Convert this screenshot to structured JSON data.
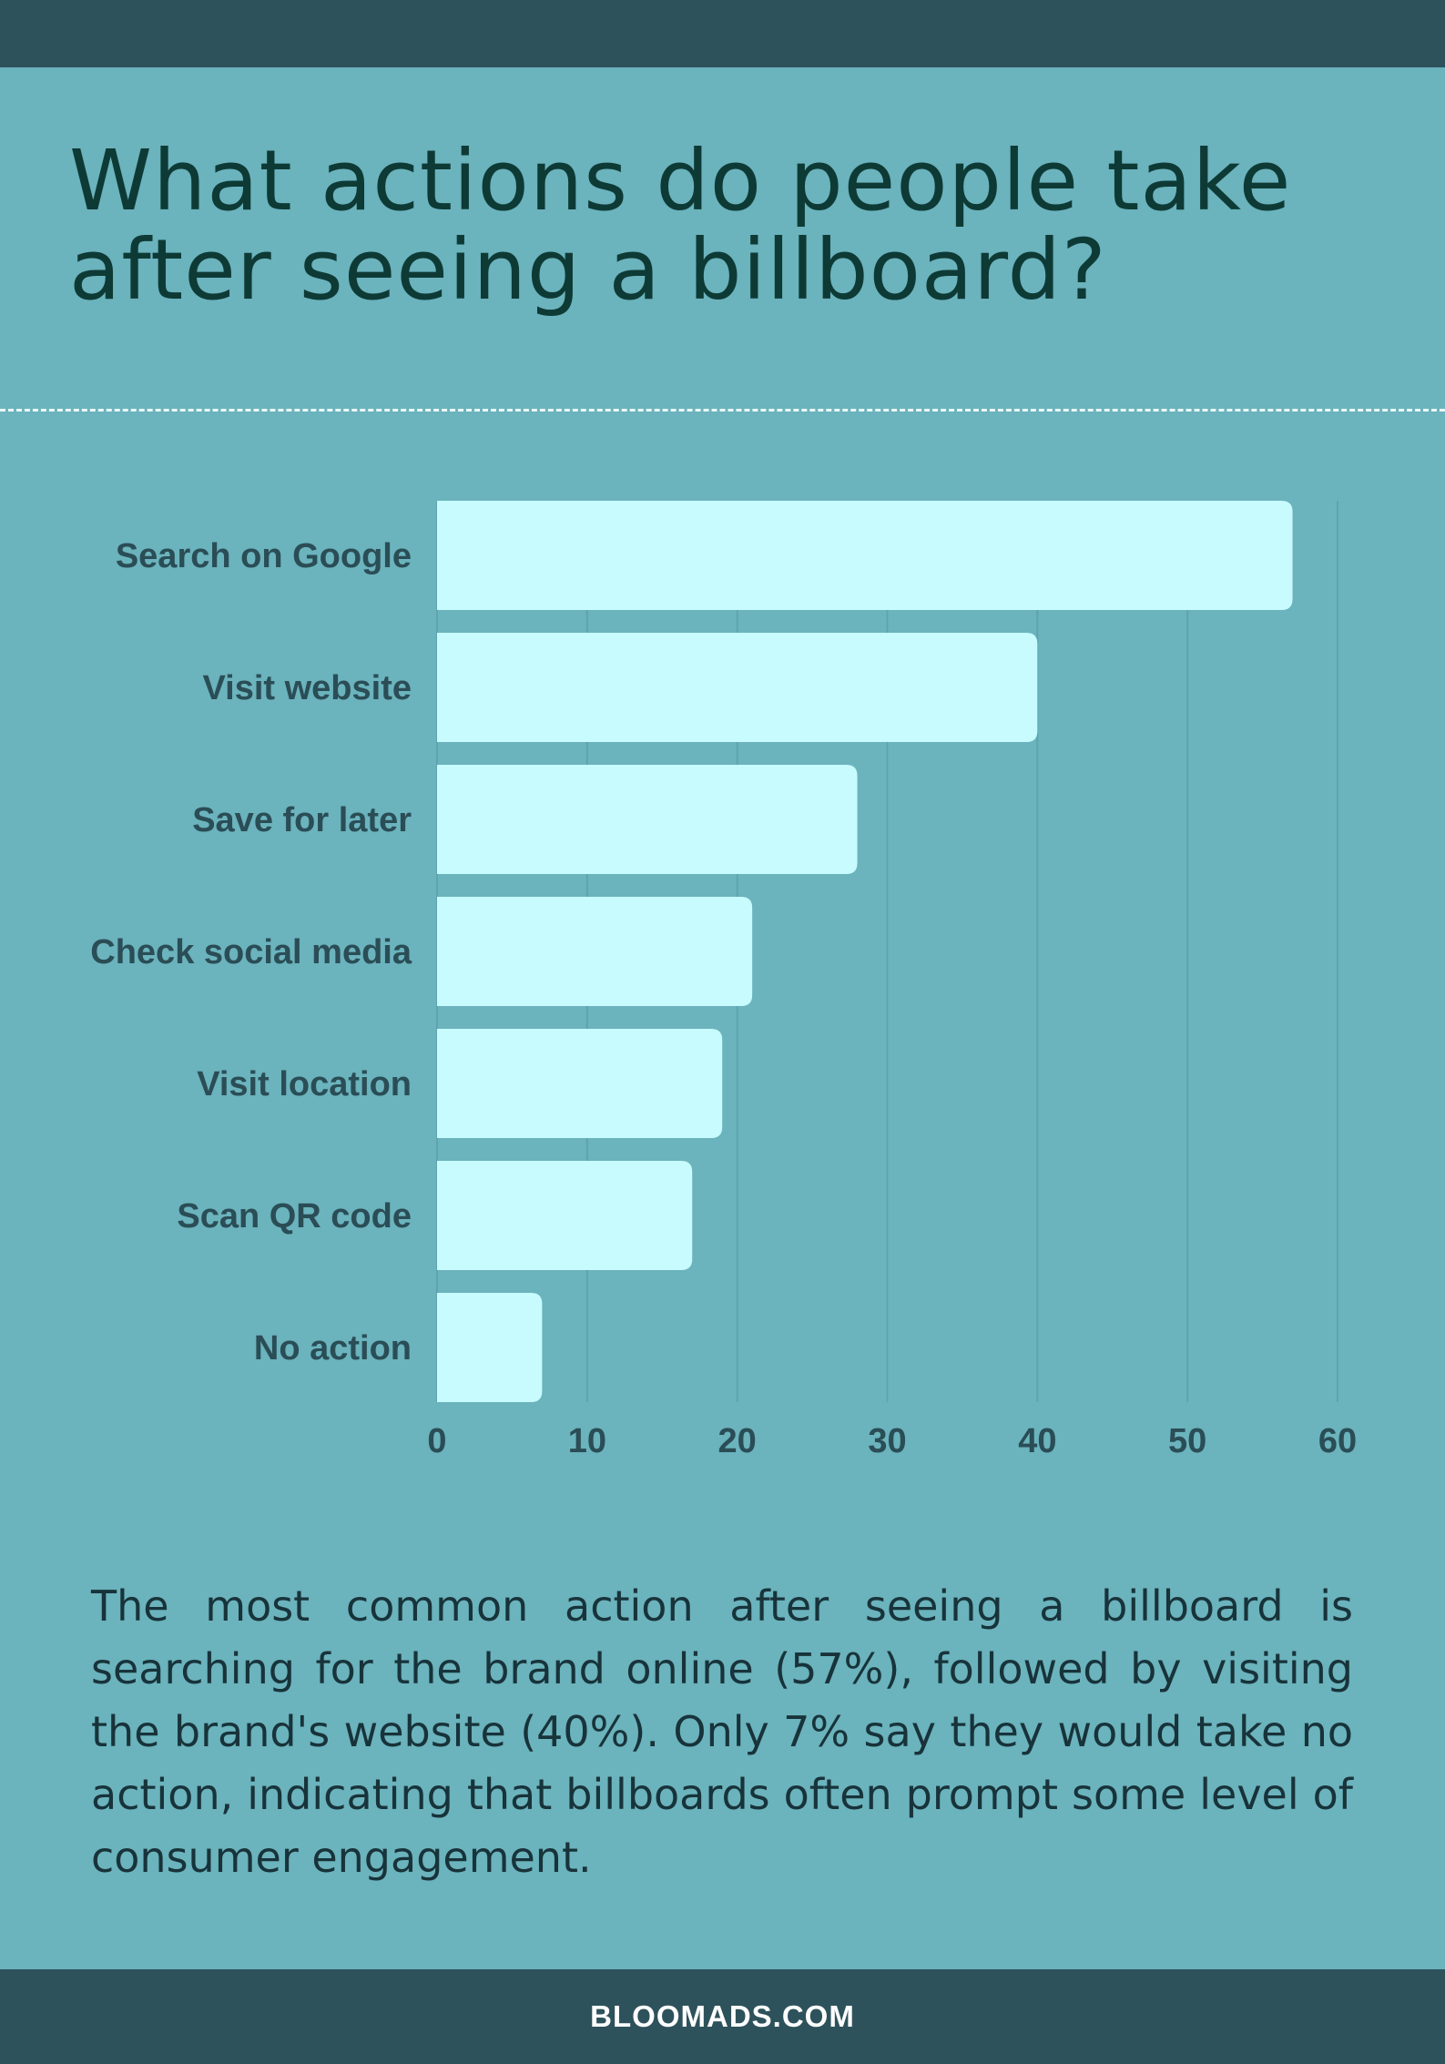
{
  "colors": {
    "background": "#6bb3bd",
    "band": "#2e525b",
    "title": "#0e3a36",
    "bar": "#c8fbfd",
    "label": "#2a4d56"
  },
  "chart_data": {
    "type": "bar",
    "orientation": "horizontal",
    "title": "What actions do people take after seeing a billboard?",
    "categories": [
      "Search on Google",
      "Visit website",
      "Save for later",
      "Check social media",
      "Visit location",
      "Scan QR code",
      "No action"
    ],
    "values": [
      57,
      40,
      28,
      21,
      19,
      17,
      7
    ],
    "xlim": [
      0,
      60
    ],
    "xticks": [
      0,
      10,
      20,
      30,
      40,
      50,
      60
    ],
    "xlabel": "",
    "ylabel": "",
    "grid": true,
    "legend": "none"
  },
  "description": "The most common action after seeing a billboard is searching for the brand online (57%), followed by visiting the brand's website (40%). Only 7% say they would take no action, indicating that billboards often prompt some level of consumer engagement.",
  "footer": {
    "site": "BLOOMADS.COM"
  }
}
